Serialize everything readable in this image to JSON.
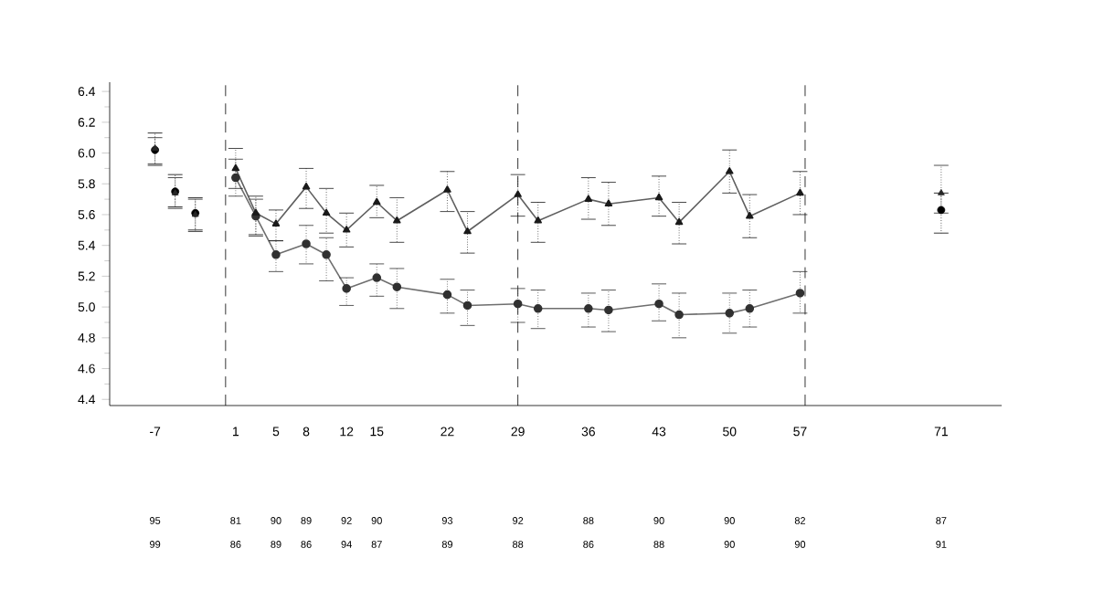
{
  "chart_data": {
    "type": "line",
    "xlim": [
      -11.5,
      77
    ],
    "ylim": [
      4.36,
      6.46
    ],
    "xticks": [
      -7,
      1,
      5,
      8,
      12,
      15,
      22,
      29,
      36,
      43,
      50,
      57,
      71
    ],
    "yticks": [
      4.4,
      4.6,
      4.8,
      {
        "value": 5,
        "label": "5.0"
      },
      5.2,
      5.4,
      5.6,
      5.8,
      {
        "value": 6,
        "label": "6.0"
      },
      6.2,
      6.4
    ],
    "grid": false,
    "series": [
      {
        "color": "#303030",
        "marker": "circle",
        "x": [
          1,
          3,
          5,
          8,
          10,
          12,
          15,
          17,
          22,
          24,
          29,
          31,
          36,
          38,
          43,
          45,
          50,
          52,
          57
        ],
        "values": [
          5.84,
          5.59,
          5.34,
          5.41,
          5.34,
          5.12,
          5.19,
          5.13,
          5.08,
          5.01,
          5.02,
          4.99,
          4.99,
          4.98,
          5.02,
          4.95,
          4.96,
          4.99,
          5.09
        ],
        "errors": [
          [
            5.72,
            5.96
          ],
          [
            5.46,
            5.7
          ],
          [
            5.23,
            5.43
          ],
          [
            5.28,
            5.53
          ],
          [
            5.17,
            5.45
          ],
          [
            5.01,
            5.19
          ],
          [
            5.07,
            5.28
          ],
          [
            4.99,
            5.25
          ],
          [
            4.96,
            5.18
          ],
          [
            4.88,
            5.11
          ],
          [
            4.9,
            5.12
          ],
          [
            4.86,
            5.11
          ],
          [
            4.87,
            5.09
          ],
          [
            4.84,
            5.11
          ],
          [
            4.91,
            5.15
          ],
          [
            4.8,
            5.09
          ],
          [
            4.83,
            5.09
          ],
          [
            4.87,
            5.11
          ],
          [
            4.96,
            5.23
          ]
        ]
      },
      {
        "color": "#1a1a1a",
        "marker": "triangle",
        "x": [
          1,
          3,
          5,
          8,
          10,
          12,
          15,
          17,
          22,
          24,
          29,
          31,
          36,
          38,
          43,
          45,
          50,
          52,
          57
        ],
        "values": [
          5.9,
          5.61,
          5.54,
          5.78,
          5.61,
          5.5,
          5.68,
          5.56,
          5.76,
          5.49,
          5.73,
          5.56,
          5.7,
          5.67,
          5.71,
          5.55,
          5.88,
          5.59,
          5.74
        ],
        "errors": [
          [
            5.77,
            6.03
          ],
          [
            5.47,
            5.72
          ],
          [
            5.43,
            5.63
          ],
          [
            5.64,
            5.9
          ],
          [
            5.48,
            5.77
          ],
          [
            5.39,
            5.61
          ],
          [
            5.58,
            5.79
          ],
          [
            5.42,
            5.71
          ],
          [
            5.62,
            5.88
          ],
          [
            5.35,
            5.62
          ],
          [
            5.59,
            5.86
          ],
          [
            5.42,
            5.68
          ],
          [
            5.57,
            5.84
          ],
          [
            5.53,
            5.81
          ],
          [
            5.59,
            5.85
          ],
          [
            5.41,
            5.68
          ],
          [
            5.74,
            6.02
          ],
          [
            5.45,
            5.73
          ],
          [
            5.6,
            5.88
          ]
        ]
      },
      {
        "type": "scatter",
        "color": "#000000",
        "marker": "circle",
        "x": [
          -7,
          -5,
          -3,
          71
        ],
        "values": [
          6.02,
          5.75,
          5.61,
          5.63
        ],
        "errors": [
          [
            5.92,
            6.13
          ],
          [
            5.65,
            5.86
          ],
          [
            5.5,
            5.71
          ],
          [
            5.48,
            5.74
          ]
        ]
      },
      {
        "type": "scatter",
        "color": "#262626",
        "marker": "triangle",
        "x": [
          -7,
          -5,
          -3,
          71
        ],
        "values": [
          6.03,
          5.74,
          5.6,
          5.74
        ],
        "errors": [
          [
            5.93,
            6.1
          ],
          [
            5.64,
            5.84
          ],
          [
            5.49,
            5.7
          ],
          [
            5.61,
            5.92
          ]
        ]
      }
    ],
    "ref_lines": [
      {
        "axis": "x",
        "value": 0,
        "line_style": "dashed"
      },
      {
        "axis": "x",
        "value": 29,
        "line_style": "dashed"
      },
      {
        "axis": "x",
        "value": 57.5,
        "line_style": "dashed"
      }
    ],
    "annotations": [
      "95",
      "81",
      "90",
      "89",
      "92",
      "90",
      "93",
      "92",
      "88",
      "90",
      "90",
      "82",
      "87",
      "99",
      "86",
      "89",
      "86",
      "94",
      "87",
      "89",
      "88",
      "86",
      "88",
      "90",
      "90",
      "91"
    ]
  }
}
